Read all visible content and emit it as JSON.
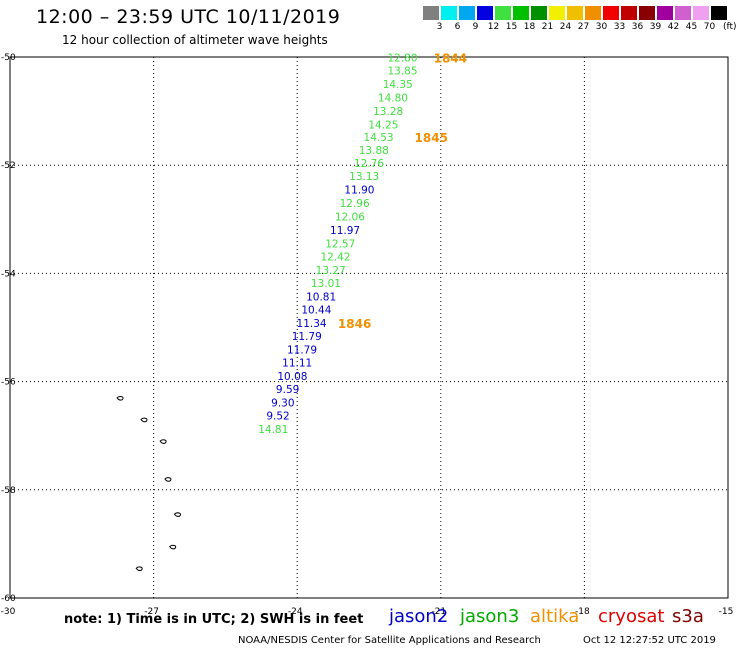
{
  "header": {
    "title": "12:00 – 23:59 UTC 10/11/2019",
    "subtitle": "12 hour collection of altimeter wave heights"
  },
  "colorbar": {
    "unit": "(ft)",
    "bins": [
      {
        "label": "3",
        "color": "#808080"
      },
      {
        "label": "6",
        "color": "#00f0f0"
      },
      {
        "label": "9",
        "color": "#00a8f0"
      },
      {
        "label": "12",
        "color": "#0000e0"
      },
      {
        "label": "15",
        "color": "#40e040"
      },
      {
        "label": "18",
        "color": "#00c000"
      },
      {
        "label": "21",
        "color": "#009000"
      },
      {
        "label": "24",
        "color": "#f0f000"
      },
      {
        "label": "27",
        "color": "#f0c000"
      },
      {
        "label": "30",
        "color": "#f09000"
      },
      {
        "label": "33",
        "color": "#f00000"
      },
      {
        "label": "36",
        "color": "#c00000"
      },
      {
        "label": "39",
        "color": "#880000"
      },
      {
        "label": "42",
        "color": "#a000a0"
      },
      {
        "label": "45",
        "color": "#d060d0"
      },
      {
        "label": "70",
        "color": "#f0a0f0"
      },
      {
        "label": "",
        "color": "#000000"
      }
    ]
  },
  "map": {
    "lon_range": [
      -30,
      -15
    ],
    "lat_range": [
      -60,
      -50
    ],
    "lon_ticks": [
      {
        "value": -30,
        "label": "-30"
      },
      {
        "value": -27,
        "label": "-27"
      },
      {
        "value": -24,
        "label": "-24"
      },
      {
        "value": -21,
        "label": "-21"
      },
      {
        "value": -18,
        "label": "-18"
      },
      {
        "value": -15,
        "label": "-15"
      }
    ],
    "lat_ticks": [
      {
        "value": -50,
        "label": "-50"
      },
      {
        "value": -52,
        "label": "-52"
      },
      {
        "value": -54,
        "label": "-54"
      },
      {
        "value": -56,
        "label": "-56"
      },
      {
        "value": -58,
        "label": "-58"
      },
      {
        "value": -60,
        "label": "-60"
      }
    ],
    "observations": [
      {
        "lon": -21.8,
        "lat": -50.01,
        "swh": "12.80",
        "sat": "jason3"
      },
      {
        "lon": -21.8,
        "lat": -50.25,
        "swh": "13.85",
        "sat": "jason3"
      },
      {
        "lon": -21.9,
        "lat": -50.5,
        "swh": "14.35",
        "sat": "jason3"
      },
      {
        "lon": -22.0,
        "lat": -50.75,
        "swh": "14.80",
        "sat": "jason3"
      },
      {
        "lon": -22.1,
        "lat": -51.0,
        "swh": "13.28",
        "sat": "jason3"
      },
      {
        "lon": -22.2,
        "lat": -51.25,
        "swh": "14.25",
        "sat": "jason3"
      },
      {
        "lon": -22.3,
        "lat": -51.48,
        "swh": "14.53",
        "sat": "jason3"
      },
      {
        "lon": -22.4,
        "lat": -51.72,
        "swh": "13.88",
        "sat": "jason3"
      },
      {
        "lon": -22.5,
        "lat": -51.96,
        "swh": "12.76",
        "sat": "jason3"
      },
      {
        "lon": -22.6,
        "lat": -52.2,
        "swh": "13.13",
        "sat": "jason3"
      },
      {
        "lon": -22.7,
        "lat": -52.45,
        "swh": "11.90",
        "sat": "jason2"
      },
      {
        "lon": -22.8,
        "lat": -52.7,
        "swh": "12.96",
        "sat": "jason3"
      },
      {
        "lon": -22.9,
        "lat": -52.95,
        "swh": "12.06",
        "sat": "jason3"
      },
      {
        "lon": -23.0,
        "lat": -53.2,
        "swh": "11.97",
        "sat": "jason2"
      },
      {
        "lon": -23.1,
        "lat": -53.45,
        "swh": "12.57",
        "sat": "jason3"
      },
      {
        "lon": -23.2,
        "lat": -53.69,
        "swh": "12.42",
        "sat": "jason3"
      },
      {
        "lon": -23.3,
        "lat": -53.94,
        "swh": "13.27",
        "sat": "jason3"
      },
      {
        "lon": -23.4,
        "lat": -54.18,
        "swh": "13.01",
        "sat": "jason3"
      },
      {
        "lon": -23.5,
        "lat": -54.43,
        "swh": "10.81",
        "sat": "jason2"
      },
      {
        "lon": -23.6,
        "lat": -54.67,
        "swh": "10.44",
        "sat": "jason2"
      },
      {
        "lon": -23.7,
        "lat": -54.92,
        "swh": "11.34",
        "sat": "jason2"
      },
      {
        "lon": -23.8,
        "lat": -55.16,
        "swh": "11.79",
        "sat": "jason2"
      },
      {
        "lon": -23.9,
        "lat": -55.41,
        "swh": "11.79",
        "sat": "jason2"
      },
      {
        "lon": -24.0,
        "lat": -55.65,
        "swh": "11.11",
        "sat": "jason2"
      },
      {
        "lon": -24.1,
        "lat": -55.9,
        "swh": "10.08",
        "sat": "jason2"
      },
      {
        "lon": -24.2,
        "lat": -56.14,
        "swh": "9.59",
        "sat": "jason2"
      },
      {
        "lon": -24.3,
        "lat": -56.39,
        "swh": "9.30",
        "sat": "jason2"
      },
      {
        "lon": -24.4,
        "lat": -56.63,
        "swh": "9.52",
        "sat": "jason2"
      },
      {
        "lon": -24.5,
        "lat": -56.88,
        "swh": "14.81",
        "sat": "jason3"
      }
    ],
    "track_times": [
      {
        "lon": -20.8,
        "lat": -50.01,
        "label": "1844"
      },
      {
        "lon": -21.2,
        "lat": -51.48,
        "label": "1845"
      },
      {
        "lon": -22.8,
        "lat": -54.92,
        "label": "1846"
      }
    ],
    "islands": [
      {
        "lon": -27.7,
        "lat": -56.3
      },
      {
        "lon": -27.2,
        "lat": -56.7
      },
      {
        "lon": -26.8,
        "lat": -57.1
      },
      {
        "lon": -26.7,
        "lat": -57.8
      },
      {
        "lon": -26.5,
        "lat": -58.45
      },
      {
        "lon": -26.6,
        "lat": -59.05
      },
      {
        "lon": -27.3,
        "lat": -59.45
      }
    ]
  },
  "footer": {
    "note": "note:  1) Time is in UTC; 2) SWH is in feet",
    "credit": "NOAA/NESDIS Center for Satellite Applications and Research",
    "timestamp": "Oct 12 12:27:52 UTC 2019"
  },
  "legend": [
    {
      "name": "jason2",
      "color": "#0000c8"
    },
    {
      "name": "jason3",
      "color": "#00aa00"
    },
    {
      "name": "altika",
      "color": "#f09000"
    },
    {
      "name": "cryosat",
      "color": "#e00000"
    },
    {
      "name": "s3a",
      "color": "#800000"
    }
  ],
  "colors": {
    "jason2_label": "#0000c8",
    "jason3_label": "#40e040",
    "time_label": "#f09000"
  }
}
